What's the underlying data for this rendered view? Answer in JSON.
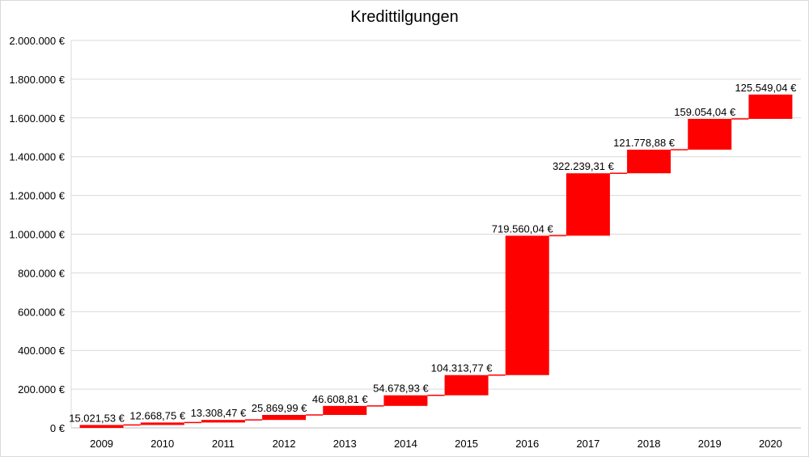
{
  "chart_data": {
    "type": "waterfall",
    "title": "Kredittilgungen",
    "xlabel": "",
    "ylabel": "",
    "categories": [
      "2009",
      "2010",
      "2011",
      "2012",
      "2013",
      "2014",
      "2015",
      "2016",
      "2017",
      "2018",
      "2019",
      "2020"
    ],
    "values": [
      15021.53,
      12668.75,
      13308.47,
      25869.99,
      46608.81,
      54678.93,
      104313.77,
      719560.04,
      322239.31,
      121778.88,
      159054.04,
      125549.04
    ],
    "data_labels": [
      "15.021,53 €",
      "12.668,75 €",
      "13.308,47 €",
      "25.869,99 €",
      "46.608,81 €",
      "54.678,93 €",
      "104.313,77 €",
      "719.560,04 €",
      "322.239,31 €",
      "121.778,88 €",
      "159.054,04 €",
      "125.549,04 €"
    ],
    "ylim": [
      0,
      2000000
    ],
    "yticks": [
      0,
      200000,
      400000,
      600000,
      800000,
      1000000,
      1200000,
      1400000,
      1600000,
      1800000,
      2000000
    ],
    "ytick_labels": [
      "0 €",
      "200.000 €",
      "400.000 €",
      "600.000 €",
      "800.000 €",
      "1.000.000 €",
      "1.200.000 €",
      "1.400.000 €",
      "1.600.000 €",
      "1.800.000 €",
      "2.000.000 €"
    ],
    "grid": true,
    "legend": "none",
    "bar_color": "#ff0000",
    "connector_color": "#ff0000",
    "grid_color": "#d9d9d9"
  }
}
